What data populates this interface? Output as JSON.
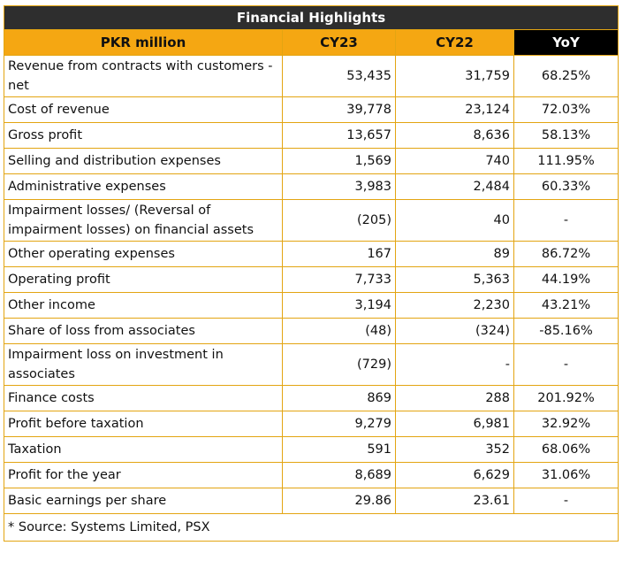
{
  "title": "Financial Highlights",
  "headers": [
    "PKR million",
    "CY23",
    "CY22",
    "YoY"
  ],
  "rows": [
    {
      "label": "Revenue from contracts with customers - net",
      "cy23": "53,435",
      "cy22": "31,759",
      "yoy": "68.25%",
      "tall": true
    },
    {
      "label": "Cost of revenue",
      "cy23": "39,778",
      "cy22": "23,124",
      "yoy": "72.03%"
    },
    {
      "label": "Gross profit",
      "cy23": "13,657",
      "cy22": "8,636",
      "yoy": "58.13%"
    },
    {
      "label": "Selling and distribution expenses",
      "cy23": "1,569",
      "cy22": "740",
      "yoy": "111.95%"
    },
    {
      "label": "Administrative expenses",
      "cy23": "3,983",
      "cy22": "2,484",
      "yoy": "60.33%"
    },
    {
      "label": "Impairment losses/ (Reversal of impairment losses) on financial assets",
      "cy23": "(205)",
      "cy22": "40",
      "yoy": "-",
      "tall": true
    },
    {
      "label": "Other operating expenses",
      "cy23": "167",
      "cy22": "89",
      "yoy": "86.72%"
    },
    {
      "label": "Operating profit",
      "cy23": "7,733",
      "cy22": "5,363",
      "yoy": "44.19%"
    },
    {
      "label": "Other income",
      "cy23": "3,194",
      "cy22": "2,230",
      "yoy": "43.21%"
    },
    {
      "label": "Share of loss from associates",
      "cy23": "(48)",
      "cy22": "(324)",
      "yoy": "-85.16%"
    },
    {
      "label": "Impairment loss on investment in associates",
      "cy23": "(729)",
      "cy22": "-",
      "yoy": "-",
      "tall": true
    },
    {
      "label": "Finance costs",
      "cy23": "869",
      "cy22": "288",
      "yoy": "201.92%"
    },
    {
      "label": "Profit before taxation",
      "cy23": "9,279",
      "cy22": "6,981",
      "yoy": "32.92%"
    },
    {
      "label": "Taxation",
      "cy23": "591",
      "cy22": "352",
      "yoy": "68.06%"
    },
    {
      "label": "Profit for the year",
      "cy23": "8,689",
      "cy22": "6,629",
      "yoy": "31.06%"
    },
    {
      "label": "Basic earnings per share",
      "cy23": "29.86",
      "cy22": "23.61",
      "yoy": "-"
    }
  ],
  "source": "* Source: Systems Limited, PSX",
  "colors": {
    "title_bg": "#2e2e2e",
    "header_bg": "#f5a712",
    "yoy_header_bg": "#000000",
    "border": "#e3a512"
  }
}
